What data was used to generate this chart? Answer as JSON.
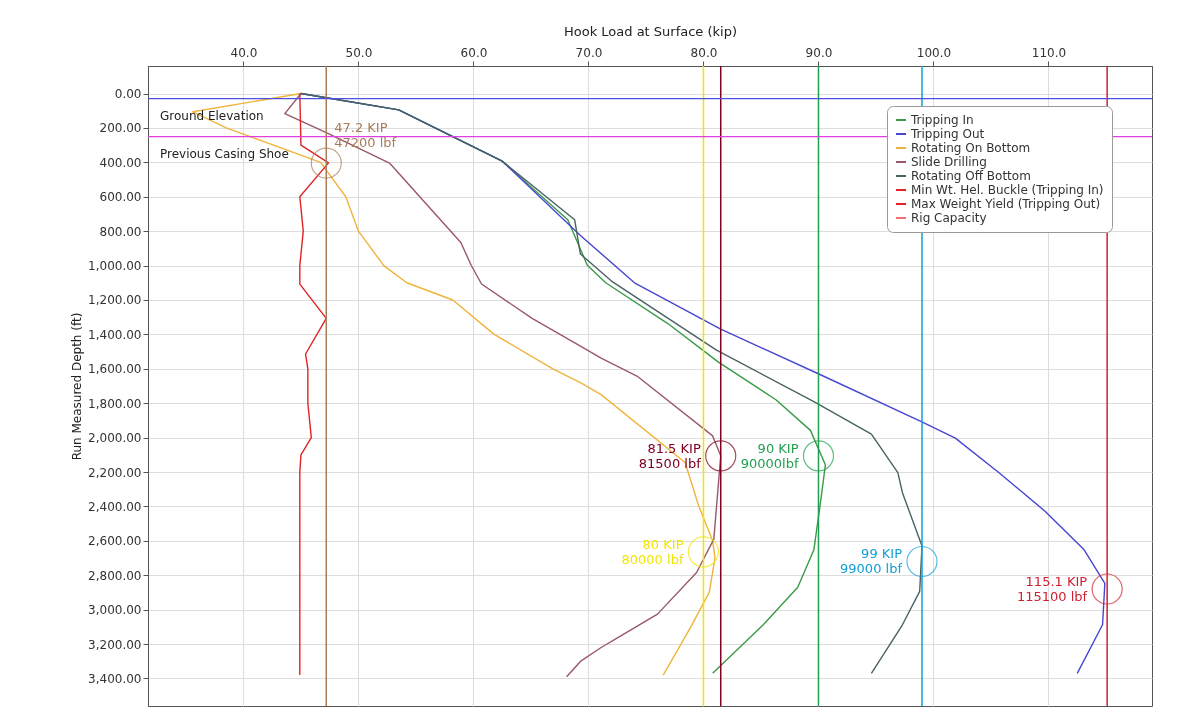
{
  "chart_data": {
    "type": "line",
    "xlabel": "Hook Load at Surface (kip)",
    "ylabel": "Run Measured Depth (ft)",
    "xlim": [
      31.7,
      119
    ],
    "xticks": [
      {
        "value": 40,
        "label": "40.0"
      },
      {
        "value": 50,
        "label": "50.0"
      },
      {
        "value": 60,
        "label": "60.0"
      },
      {
        "value": 70,
        "label": "70.0"
      },
      {
        "value": 80,
        "label": "80.0"
      },
      {
        "value": 90,
        "label": "90.0"
      },
      {
        "value": 100,
        "label": "100.0"
      },
      {
        "value": 110,
        "label": "110.0"
      }
    ],
    "ylim": [
      3560,
      -160
    ],
    "yticks": [
      {
        "value": 0,
        "label": "0.00"
      },
      {
        "value": 200,
        "label": "200.00"
      },
      {
        "value": 400,
        "label": "400.00"
      },
      {
        "value": 600,
        "label": "600.00"
      },
      {
        "value": 800,
        "label": "800.00"
      },
      {
        "value": 1000,
        "label": "1,000.00"
      },
      {
        "value": 1200,
        "label": "1,200.00"
      },
      {
        "value": 1400,
        "label": "1,400.00"
      },
      {
        "value": 1600,
        "label": "1,600.00"
      },
      {
        "value": 1800,
        "label": "1,800.00"
      },
      {
        "value": 2000,
        "label": "2,000.00"
      },
      {
        "value": 2200,
        "label": "2,200.00"
      },
      {
        "value": 2400,
        "label": "2,400.00"
      },
      {
        "value": 2600,
        "label": "2,600.00"
      },
      {
        "value": 2800,
        "label": "2,800.00"
      },
      {
        "value": 3000,
        "label": "3,000.00"
      },
      {
        "value": 3200,
        "label": "3,200.00"
      },
      {
        "value": 3400,
        "label": "3,400.00"
      }
    ],
    "grid": true,
    "legend": "top right",
    "series": [
      {
        "name": "Tripping In",
        "color": "#3a9a48",
        "x": [
          45,
          53.5,
          62.5,
          68.2,
          69.9,
          71.5,
          76.9,
          81.3,
          86.3,
          89.3,
          90.6,
          90.2,
          89.6,
          88.2,
          85.2,
          80.8
        ],
        "values": [
          0,
          95,
          393,
          734,
          998,
          1100,
          1337,
          1561,
          1780,
          1958,
          2158,
          2364,
          2652,
          2870,
          3088,
          3370
        ]
      },
      {
        "name": "Tripping Out",
        "color": "#4646d2",
        "x": [
          45,
          53.5,
          62.5,
          69.3,
          74,
          81.5,
          89.8,
          98.9,
          101.9,
          105.7,
          109.7,
          113.1,
          114.9,
          114.7,
          112.5
        ],
        "values": [
          0,
          95,
          393,
          825,
          1100,
          1370,
          1623,
          1905,
          2003,
          2204,
          2428,
          2652,
          2847,
          3088,
          3370
        ]
      },
      {
        "name": "Rotating On Bottom",
        "color": "#f0b43c",
        "x": [
          45,
          35.6,
          38.5,
          46.7,
          48.9,
          50,
          52.2,
          54.2,
          58.2,
          61.8,
          66.9,
          69.3,
          71.1,
          78.4,
          79.6,
          80.8,
          81,
          80.5,
          78.9,
          76.5
        ],
        "values": [
          0,
          106,
          200,
          400,
          600,
          800,
          1000,
          1100,
          1200,
          1400,
          1600,
          1681,
          1750,
          2145,
          2400,
          2600,
          2700,
          2900,
          3100,
          3380
        ]
      },
      {
        "name": "Slide Drilling",
        "color": "#9a5868",
        "x": [
          45,
          43.6,
          47.2,
          52.7,
          58.9,
          59.8,
          60.7,
          65.1,
          69.3,
          71.1,
          74.3,
          80.8,
          81.5,
          80.9,
          79.4,
          76,
          72.7,
          71.1,
          69.3,
          68.1
        ],
        "values": [
          0,
          117,
          227,
          404,
          866,
          998,
          1107,
          1307,
          1468,
          1538,
          1646,
          1990,
          2106,
          2590,
          2784,
          3026,
          3157,
          3220,
          3301,
          3390
        ]
      },
      {
        "name": "Rotating Off Bottom",
        "color": "#4a6262",
        "x": [
          45,
          53.5,
          62.5,
          68.8,
          69.3,
          72,
          81.1,
          89.6,
          94.6,
          96.9,
          97.3,
          99,
          98.8,
          97.3,
          94.6
        ],
        "values": [
          0,
          95,
          393,
          734,
          933,
          1090,
          1490,
          1791,
          1980,
          2204,
          2320,
          2630,
          2894,
          3088,
          3370
        ]
      },
      {
        "name": "Min Wt. Hel. Buckle (Tripping In)",
        "color": "#e02424",
        "x": [
          44.9,
          45,
          47.4,
          44.9,
          45.2,
          44.9,
          44.9,
          47.2,
          45.4,
          45.6,
          45.6,
          45.9,
          45,
          44.9,
          44.9
        ],
        "values": [
          0,
          300,
          403,
          600,
          800,
          1000,
          1108,
          1307,
          1514,
          1600,
          1800,
          2000,
          2100,
          2200,
          3380
        ]
      },
      {
        "name": "Max Weight Yield (Tripping Out)",
        "color": "#e02424"
      },
      {
        "name": "Rig Capacity",
        "color": "#f07070"
      }
    ],
    "ref_lines": [
      {
        "axis": "y",
        "value": 30,
        "label": "Ground Elevation",
        "color": "#5050e0"
      },
      {
        "axis": "y",
        "value": 250,
        "label": "Previous Casing Shoe",
        "color": "#e040e0"
      },
      {
        "axis": "x",
        "value": 47.2,
        "color": "#a87c58"
      },
      {
        "axis": "x",
        "value": 80,
        "color": "#f2e400"
      },
      {
        "axis": "x",
        "value": 81.5,
        "color": "#800020"
      },
      {
        "axis": "x",
        "value": 90,
        "color": "#20a050"
      },
      {
        "axis": "x",
        "value": 99,
        "color": "#10a0d8"
      },
      {
        "axis": "x",
        "value": 115.1,
        "color": "#d02030"
      }
    ],
    "annotations": [
      {
        "text": "47.2 KIP\n47200 lbf",
        "x": 47.2,
        "y": 404
      },
      {
        "text": "81.5 KIP\n81500 lbf",
        "x": 81.5,
        "y": 2106
      },
      {
        "text": "90 KIP\n90000lbf",
        "x": 90,
        "y": 2106
      },
      {
        "text": "80 KIP\n80000 lbf",
        "x": 80,
        "y": 2664
      },
      {
        "text": "99 KIP\n99000 lbf",
        "x": 99,
        "y": 2720
      },
      {
        "text": "115.1 KIP\n115100 lbf",
        "x": 115.1,
        "y": 2880
      }
    ]
  }
}
